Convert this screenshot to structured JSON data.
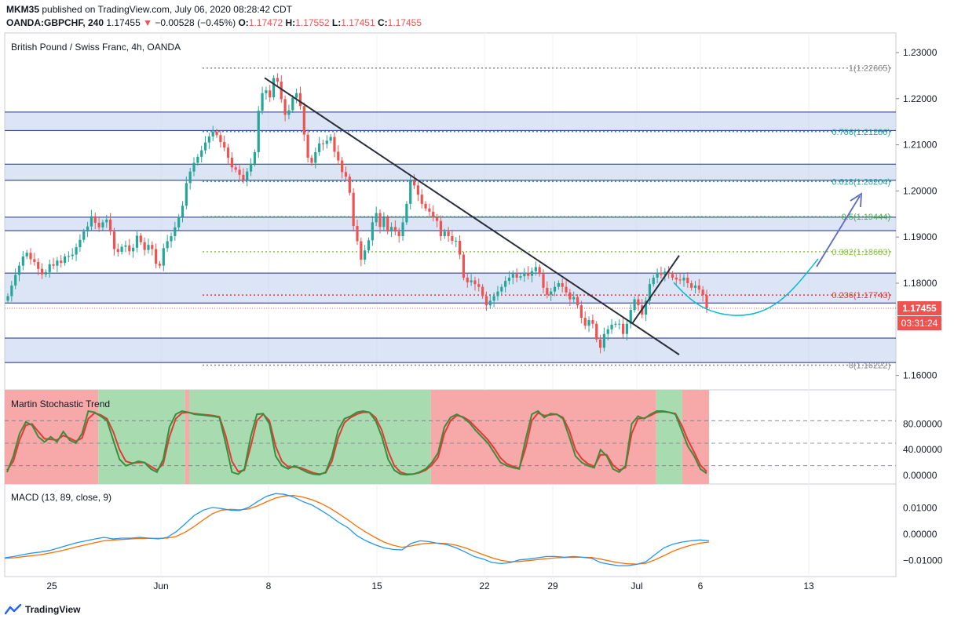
{
  "header": {
    "line1_user": "MKM35",
    "line1_rest": "published on TradingView.com, July 06, 2020 08:28:42 CDT",
    "symbol": "OANDA:GBPCHF, 240",
    "last": "1.17455",
    "arrow": "▼",
    "change": "−0.00528 (−0.45%)",
    "o_label": "O:",
    "o": "1.17472",
    "h_label": "H:",
    "h": "1.17552",
    "l_label": "L:",
    "l": "1.17451",
    "c_label": "C:",
    "c": "1.17455"
  },
  "main_title": "British Pound / Swiss Franc, 4h, OANDA",
  "price_badge": "1.17455",
  "timer_badge": "03:31:24",
  "stoch_title": "Martin Stochastic Trend",
  "macd_title": "MACD (13, 89, close, 9)",
  "footer": {
    "brand": "TradingView"
  },
  "colors": {
    "up": "#26a69a",
    "down": "#ef5350",
    "zone_fill": "#c5d3ee",
    "zone_line": "#1c2d8c",
    "stoch_green": "#a8dcb0",
    "stoch_red": "#f7a9a9",
    "macd": "#2196f3",
    "signal": "#ff6d00"
  },
  "chart_data": [
    {
      "type": "candlestick",
      "title": "British Pound / Swiss Franc, 4h, OANDA",
      "x_ticks": [
        "25",
        "Jun",
        "8",
        "15",
        "22",
        "29",
        "Jul",
        "6",
        "13"
      ],
      "x_tick_extra": "25",
      "y_ticks": [
        "1.23000",
        "1.22000",
        "1.21000",
        "1.20000",
        "1.19000",
        "1.18000",
        "1.16000"
      ],
      "ylim": [
        1.1595,
        1.2325
      ],
      "fib_levels": [
        {
          "label": "1(1.22665)",
          "value": 1.22665,
          "color": "#888888"
        },
        {
          "label": "0.786(1.21286)",
          "value": 1.21286,
          "color": "#26a69a"
        },
        {
          "label": "0.618(1.20204)",
          "value": 1.20204,
          "color": "#26a69a"
        },
        {
          "label": "0.5(1.19444)",
          "value": 1.19444,
          "color": "#4caf50"
        },
        {
          "label": "0.382(1.18683)",
          "value": 1.18683,
          "color": "#8bc34a"
        },
        {
          "label": "0.236(1.17743)",
          "value": 1.17743,
          "color": "#e53935"
        },
        {
          "label": "0(1.16222)",
          "value": 1.16222,
          "color": "#888888"
        }
      ],
      "zones": [
        [
          1.2131,
          1.2171
        ],
        [
          1.2023,
          1.2058
        ],
        [
          1.1914,
          1.1943
        ],
        [
          1.1757,
          1.1822
        ],
        [
          1.1628,
          1.1681
        ]
      ],
      "closes": [
        1.1772,
        1.1795,
        1.1818,
        1.1838,
        1.1858,
        1.1866,
        1.1852,
        1.1846,
        1.1831,
        1.1819,
        1.1824,
        1.1841,
        1.1838,
        1.1849,
        1.1844,
        1.1858,
        1.1859,
        1.1862,
        1.1878,
        1.1894,
        1.1912,
        1.1923,
        1.1945,
        1.1931,
        1.1921,
        1.1932,
        1.1938,
        1.1912,
        1.1874,
        1.1868,
        1.1879,
        1.1882,
        1.1869,
        1.1877,
        1.1903,
        1.1889,
        1.1872,
        1.1883,
        1.1874,
        1.1842,
        1.1838,
        1.1876,
        1.1891,
        1.1902,
        1.1921,
        1.1944,
        1.1968,
        1.2017,
        1.2042,
        1.2061,
        1.2074,
        1.2088,
        1.2105,
        1.2118,
        1.2129,
        1.2121,
        1.2106,
        1.2094,
        1.2072,
        1.2051,
        1.2046,
        1.2035,
        1.2024,
        1.2042,
        1.2059,
        1.2084,
        1.2174,
        1.2212,
        1.2218,
        1.2203,
        1.2245,
        1.2237,
        1.2199,
        1.2165,
        1.2175,
        1.2202,
        1.2212,
        1.2184,
        1.2122,
        1.2072,
        1.2061,
        1.2084,
        1.2103,
        1.2102,
        1.2109,
        1.2117,
        1.2085,
        1.2066,
        1.2041,
        1.2031,
        1.1996,
        1.1924,
        1.1891,
        1.1851,
        1.1871,
        1.1893,
        1.1932,
        1.1952,
        1.1922,
        1.1942,
        1.1912,
        1.1922,
        1.1912,
        1.1902,
        1.1932,
        1.1972,
        1.2022,
        1.2012,
        1.1992,
        1.1972,
        1.1962,
        1.1955,
        1.1942,
        1.1935,
        1.1902,
        1.1912,
        1.1902,
        1.1892,
        1.1892,
        1.1862,
        1.1812,
        1.1802,
        1.1806,
        1.1798,
        1.1792,
        1.1772,
        1.1752,
        1.1762,
        1.1772,
        1.1782,
        1.1792,
        1.1805,
        1.1812,
        1.182,
        1.1812,
        1.1815,
        1.1823,
        1.1816,
        1.1826,
        1.1835,
        1.182,
        1.179,
        1.1775,
        1.1782,
        1.1792,
        1.18,
        1.1792,
        1.178,
        1.1765,
        1.177,
        1.1752,
        1.1725,
        1.1708,
        1.172,
        1.1712,
        1.1678,
        1.166,
        1.169,
        1.17,
        1.171,
        1.1712,
        1.1712,
        1.169,
        1.1712,
        1.1742,
        1.1765,
        1.1752,
        1.1732,
        1.1762,
        1.1798,
        1.1812,
        1.1822,
        1.1818,
        1.1825,
        1.182,
        1.1812,
        1.1808,
        1.1806,
        1.1812,
        1.18,
        1.179,
        1.1795,
        1.1786,
        1.1774,
        1.17455
      ],
      "trendline_down": [
        [
          1.2245,
          0.048
        ],
        [
          1.1645,
          0.7
        ]
      ],
      "trendline_up": [
        [
          1.1712,
          0.66
        ],
        [
          1.186,
          0.707
        ]
      ]
    },
    {
      "type": "area",
      "title": "Martin Stochastic Trend",
      "y_ticks": [
        "80.00000",
        "40.00000",
        "0.00000"
      ],
      "ylim": [
        -5,
        105
      ],
      "levels": [
        85,
        50,
        15
      ],
      "k": [
        5,
        30,
        65,
        83,
        78,
        60,
        52,
        60,
        52,
        68,
        55,
        50,
        65,
        100,
        98,
        92,
        85,
        55,
        25,
        15,
        18,
        22,
        20,
        10,
        5,
        25,
        75,
        95,
        100,
        98,
        95,
        94,
        93,
        92,
        90,
        50,
        5,
        2,
        10,
        60,
        95,
        96,
        80,
        30,
        15,
        10,
        15,
        10,
        5,
        2,
        1,
        5,
        30,
        70,
        88,
        92,
        98,
        100,
        98,
        85,
        60,
        25,
        8,
        2,
        1,
        2,
        5,
        10,
        20,
        35,
        75,
        90,
        95,
        90,
        82,
        70,
        60,
        50,
        35,
        20,
        15,
        12,
        10,
        55,
        95,
        100,
        90,
        96,
        95,
        88,
        60,
        30,
        20,
        15,
        12,
        40,
        30,
        10,
        5,
        15,
        80,
        92,
        88,
        95,
        100,
        100,
        98,
        95,
        70,
        45,
        30,
        10,
        3
      ],
      "d": [
        8,
        22,
        55,
        78,
        80,
        68,
        57,
        56,
        55,
        62,
        58,
        53,
        58,
        88,
        97,
        94,
        88,
        68,
        40,
        22,
        19,
        20,
        20,
        14,
        8,
        18,
        60,
        88,
        97,
        98,
        96,
        95,
        94,
        93,
        91,
        62,
        22,
        6,
        8,
        45,
        85,
        95,
        85,
        45,
        22,
        13,
        13,
        12,
        8,
        4,
        2,
        4,
        22,
        58,
        82,
        90,
        95,
        98,
        98,
        90,
        70,
        38,
        15,
        5,
        2,
        2,
        4,
        8,
        16,
        28,
        65,
        85,
        93,
        91,
        85,
        75,
        65,
        55,
        42,
        27,
        18,
        14,
        11,
        42,
        85,
        97,
        93,
        94,
        95,
        90,
        70,
        40,
        26,
        18,
        14,
        32,
        32,
        16,
        8,
        12,
        65,
        88,
        89,
        93,
        98,
        99,
        98,
        96,
        78,
        55,
        36,
        16,
        6
      ],
      "band_segments": [
        [
          "red",
          0,
          0.133
        ],
        [
          "green",
          0.133,
          0.256
        ],
        [
          "red",
          0.256,
          0.262
        ],
        [
          "green",
          0.262,
          0.605
        ],
        [
          "red",
          0.605,
          0.925
        ],
        [
          "green",
          0.925,
          0.962
        ],
        [
          "red",
          0.962,
          1
        ]
      ]
    },
    {
      "type": "line",
      "title": "MACD (13, 89, close, 9)",
      "y_ticks": [
        "0.01000",
        "0.00000",
        "−0.01000"
      ],
      "ylim": [
        -0.0147,
        0.0157
      ],
      "macd": [
        -0.009,
        -0.0085,
        -0.0078,
        -0.0072,
        -0.0068,
        -0.0062,
        -0.0052,
        -0.0042,
        -0.0032,
        -0.0025,
        -0.0018,
        -0.0012,
        -0.0018,
        -0.0015,
        -0.0015,
        -0.0012,
        -0.0015,
        -0.0018,
        -0.0012,
        0.001,
        0.004,
        0.0072,
        0.0092,
        0.0102,
        0.0098,
        0.0092,
        0.009,
        0.0102,
        0.0125,
        0.0145,
        0.0155,
        0.0152,
        0.0142,
        0.0125,
        0.0112,
        0.0092,
        0.007,
        0.0045,
        0.0025,
        -0.0005,
        -0.0025,
        -0.004,
        -0.0052,
        -0.0058,
        -0.006,
        -0.0035,
        -0.0025,
        -0.0028,
        -0.0035,
        -0.004,
        -0.0052,
        -0.0068,
        -0.0085,
        -0.0095,
        -0.0108,
        -0.0112,
        -0.0108,
        -0.0098,
        -0.0095,
        -0.009,
        -0.0085,
        -0.0085,
        -0.0088,
        -0.0085,
        -0.0088,
        -0.0092,
        -0.0108,
        -0.0115,
        -0.012,
        -0.012,
        -0.0115,
        -0.0105,
        -0.0078,
        -0.0052,
        -0.0038,
        -0.003,
        -0.0025,
        -0.0022,
        -0.0025
      ],
      "signal": [
        -0.0092,
        -0.009,
        -0.0086,
        -0.0082,
        -0.0078,
        -0.0072,
        -0.0065,
        -0.0057,
        -0.0048,
        -0.004,
        -0.0032,
        -0.0025,
        -0.0022,
        -0.002,
        -0.0018,
        -0.0016,
        -0.0016,
        -0.0016,
        -0.0015,
        -0.0008,
        0.0008,
        0.003,
        0.0055,
        0.0078,
        0.0092,
        0.0095,
        0.0093,
        0.0096,
        0.0108,
        0.0124,
        0.0138,
        0.0146,
        0.0148,
        0.0142,
        0.0132,
        0.0118,
        0.01,
        0.0078,
        0.0055,
        0.003,
        0.0008,
        -0.0012,
        -0.003,
        -0.0042,
        -0.005,
        -0.0045,
        -0.0038,
        -0.0034,
        -0.0034,
        -0.0036,
        -0.0042,
        -0.0052,
        -0.0065,
        -0.0078,
        -0.009,
        -0.01,
        -0.0105,
        -0.0104,
        -0.0101,
        -0.0097,
        -0.0093,
        -0.009,
        -0.0089,
        -0.0088,
        -0.0088,
        -0.0089,
        -0.0095,
        -0.0102,
        -0.0109,
        -0.0113,
        -0.0114,
        -0.0111,
        -0.0098,
        -0.0082,
        -0.0065,
        -0.0052,
        -0.0042,
        -0.0034,
        -0.003
      ]
    }
  ]
}
